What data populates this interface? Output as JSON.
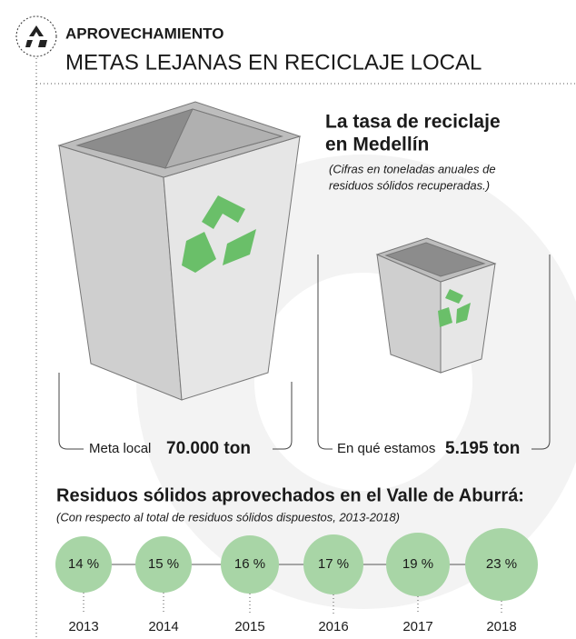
{
  "header": {
    "kicker": "APROVECHAMIENTO",
    "title": "METAS LEJANAS EN RECICLAJE LOCAL"
  },
  "comparison": {
    "title_lines": [
      "La tasa de reciclaje",
      "en Medellín"
    ],
    "note_lines": [
      "(Cifras en toneladas anuales de",
      "residuos sólidos recuperadas.)"
    ],
    "bins": [
      {
        "label": "Meta local",
        "value": "70.000 ton"
      },
      {
        "label": "En qué estamos",
        "value": "5.195 ton"
      }
    ]
  },
  "timeline": {
    "title": "Residuos sólidos aprovechados en el Valle de Aburrá:",
    "subtitle": "(Con respecto al total de residuos sólidos dispuestos, 2013-2018)",
    "points": [
      {
        "year": "2013",
        "value": "14 %"
      },
      {
        "year": "2014",
        "value": "15 %"
      },
      {
        "year": "2015",
        "value": "16 %"
      },
      {
        "year": "2016",
        "value": "17 %"
      },
      {
        "year": "2017",
        "value": "19 %"
      },
      {
        "year": "2018",
        "value": "23 %"
      }
    ]
  }
}
